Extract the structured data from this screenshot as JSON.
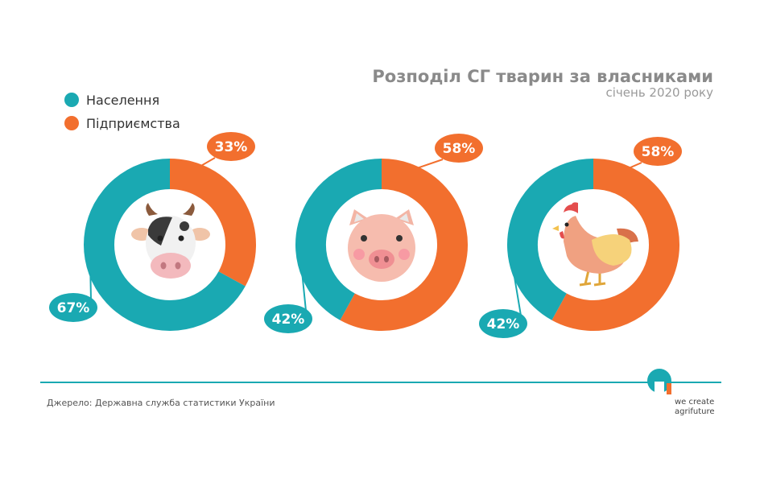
{
  "header": {
    "title": "Розподіл СГ тварин за власниками",
    "subtitle": "січень 2020 року"
  },
  "legend": [
    {
      "label": "Населення",
      "color": "#1aa9b2"
    },
    {
      "label": "Підприємства",
      "color": "#f26f2e"
    }
  ],
  "chart_data": {
    "type": "pie",
    "title": "Розподіл СГ тварин за власниками",
    "subtitle": "січень 2020 року",
    "series_names": [
      "Населення",
      "Підприємства"
    ],
    "colors": [
      "#1aa9b2",
      "#f26f2e"
    ],
    "legend_position": "top-left",
    "charts": [
      {
        "icon": "cow-icon",
        "values": [
          67,
          33
        ],
        "labels": [
          "67%",
          "33%"
        ]
      },
      {
        "icon": "pig-icon",
        "values": [
          42,
          58
        ],
        "labels": [
          "42%",
          "58%"
        ]
      },
      {
        "icon": "chicken-icon",
        "values": [
          42,
          58
        ],
        "labels": [
          "42%",
          "58%"
        ]
      }
    ]
  },
  "footer": {
    "source": "Джерело: Державна служба статистики України",
    "logo_line1": "we create",
    "logo_line2": "agrifuture"
  }
}
